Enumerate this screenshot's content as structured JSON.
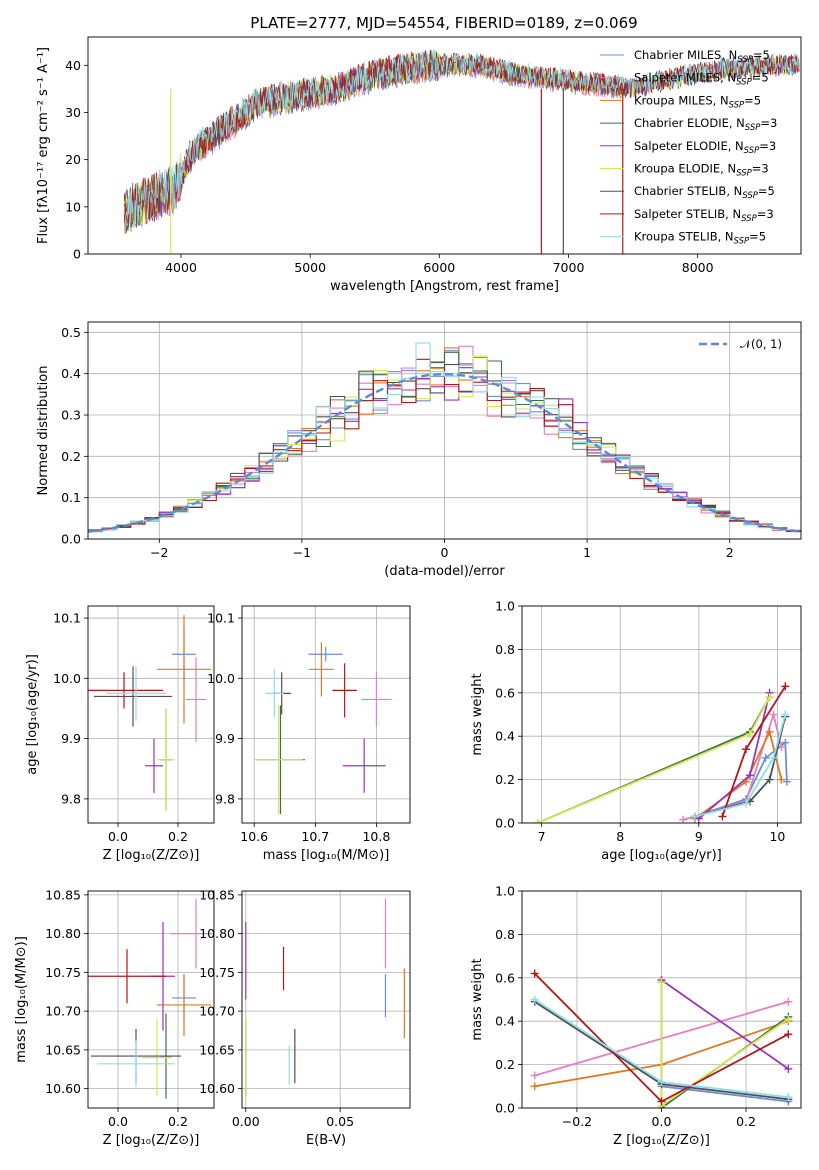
{
  "colors": {
    "Chabrier MILES": "#6a8fd8",
    "Salpeter MILES": "#e57fbf",
    "Kroupa MILES": "#e07a22",
    "Chabrier ELODIE": "#3e6e4a",
    "Salpeter ELODIE": "#9b34b5",
    "Kroupa ELODIE": "#d7e655",
    "Chabrier STELIB": "#505050",
    "Salpeter STELIB": "#b01818",
    "Kroupa STELIB": "#8fdcea",
    "gaussian": "#5b8bd6",
    "grid": "#b0b0b0"
  },
  "chart_data": [
    {
      "type": "line",
      "title": "PLATE=2777, MJD=54554, FIBERID=0189, z=0.069",
      "xlabel": "wavelength [Angstrom, rest frame]",
      "ylabel": "Flux [fλ10⁻¹⁷ erg cm⁻² s⁻¹ A⁻¹]",
      "xlim": [
        3280,
        8800
      ],
      "ylim": [
        0,
        46
      ],
      "xticks": [
        4000,
        5000,
        6000,
        7000,
        8000
      ],
      "yticks": [
        0,
        10,
        20,
        30,
        40
      ],
      "legend_position": "upper-right",
      "legend": [
        {
          "name": "Chabrier MILES",
          "suffix": "=5"
        },
        {
          "name": "Salpeter MILES",
          "suffix": "=5"
        },
        {
          "name": "Kroupa MILES",
          "suffix": "=5"
        },
        {
          "name": "Chabrier ELODIE",
          "suffix": "=3"
        },
        {
          "name": "Salpeter ELODIE",
          "suffix": "=3"
        },
        {
          "name": "Kroupa ELODIE",
          "suffix": "=3"
        },
        {
          "name": "Chabrier STELIB",
          "suffix": "=5"
        },
        {
          "name": "Salpeter STELIB",
          "suffix": "=3"
        },
        {
          "name": "Kroupa STELIB",
          "suffix": "=5"
        }
      ],
      "legend_label_part": ", N",
      "legend_sub": "SSP",
      "spectrum_trend": {
        "x": [
          3560,
          3800,
          3950,
          4100,
          4300,
          4600,
          5000,
          5200,
          5500,
          5900,
          6300,
          6600,
          6900,
          7200,
          7500,
          7800,
          8200,
          8800
        ],
        "y": [
          9,
          12,
          14,
          22,
          26,
          32,
          34,
          35,
          38,
          40,
          40,
          38,
          37,
          36,
          35,
          37,
          39,
          40
        ]
      },
      "spikes": [
        {
          "x": 3920,
          "series": "Kroupa ELODIE"
        },
        {
          "x": 6790,
          "series": "Salpeter STELIB"
        },
        {
          "x": 6960,
          "series": "Chabrier STELIB"
        },
        {
          "x": 7420,
          "series": "Salpeter STELIB"
        }
      ]
    },
    {
      "type": "step",
      "xlabel": "(data-model)/error",
      "ylabel": "Normed distribution",
      "xlim": [
        -2.5,
        2.5
      ],
      "ylim": [
        0,
        0.525
      ],
      "xticks": [
        -2,
        -1,
        0,
        1,
        2
      ],
      "yticks": [
        0.0,
        0.1,
        0.2,
        0.3,
        0.4,
        0.5
      ],
      "legend": "𝒩(0, 1)",
      "legend_position": "upper-right",
      "bin_width": 0.1
    },
    {
      "type": "scatter",
      "xlabel": "Z [log₁₀(Z/Z⊙)]",
      "ylabel": "age  [log₁₀(age/yr)]",
      "xlim": [
        -0.1,
        0.32
      ],
      "ylim": [
        9.76,
        10.12
      ],
      "xticks": [
        0.0,
        0.2
      ],
      "yticks": [
        9.8,
        9.9,
        10.0,
        10.1
      ],
      "points": [
        {
          "s": "Chabrier MILES",
          "x": 0.22,
          "y": 10.04,
          "ex": 0.04,
          "ey": 0.045
        },
        {
          "s": "Salpeter MILES",
          "x": 0.26,
          "y": 9.965,
          "ex": 0.035,
          "ey": 0.07
        },
        {
          "s": "Kroupa MILES",
          "x": 0.22,
          "y": 10.015,
          "ex": 0.09,
          "ey": 0.09
        },
        {
          "s": "Chabrier ELODIE",
          "x": 0.16,
          "y": 9.865,
          "ex": 0.02,
          "ey": 0.085
        },
        {
          "s": "Salpeter ELODIE",
          "x": 0.12,
          "y": 9.855,
          "ex": 0.03,
          "ey": 0.045
        },
        {
          "s": "Kroupa ELODIE",
          "x": 0.16,
          "y": 9.865,
          "ex": 0.03,
          "ey": 0.085
        },
        {
          "s": "Chabrier STELIB",
          "x": 0.05,
          "y": 9.97,
          "ex": 0.13,
          "ey": 0.05
        },
        {
          "s": "Salpeter STELIB",
          "x": 0.02,
          "y": 9.98,
          "ex": 0.13,
          "ey": 0.03
        },
        {
          "s": "Kroupa STELIB",
          "x": 0.06,
          "y": 9.975,
          "ex": 0.1,
          "ey": 0.045
        }
      ]
    },
    {
      "type": "scatter",
      "xlabel": "mass [log₁₀(M/M⊙)]",
      "ylabel": "",
      "xlim": [
        10.58,
        10.855
      ],
      "ylim": [
        9.76,
        10.12
      ],
      "xticks": [
        10.6,
        10.7,
        10.8
      ],
      "yticks": [
        9.8,
        9.9,
        10.0,
        10.1
      ],
      "points": [
        {
          "s": "Chabrier MILES",
          "x": 10.717,
          "y": 10.04,
          "ex": 0.028,
          "ey": 0.012
        },
        {
          "s": "Salpeter MILES",
          "x": 10.8,
          "y": 9.965,
          "ex": 0.025,
          "ey": 0.045
        },
        {
          "s": "Kroupa MILES",
          "x": 10.71,
          "y": 10.015,
          "ex": 0.02,
          "ey": 0.045
        },
        {
          "s": "Chabrier ELODIE",
          "x": 10.643,
          "y": 9.865,
          "ex": 0.04,
          "ey": 0.09
        },
        {
          "s": "Salpeter ELODIE",
          "x": 10.78,
          "y": 9.855,
          "ex": 0.035,
          "ey": 0.045
        },
        {
          "s": "Kroupa ELODIE",
          "x": 10.64,
          "y": 9.865,
          "ex": 0.04,
          "ey": 0.09
        },
        {
          "s": "Chabrier STELIB",
          "x": 10.645,
          "y": 9.975,
          "ex": 0.015,
          "ey": 0.035
        },
        {
          "s": "Salpeter STELIB",
          "x": 10.748,
          "y": 9.98,
          "ex": 0.02,
          "ey": 0.045
        },
        {
          "s": "Kroupa STELIB",
          "x": 10.633,
          "y": 9.975,
          "ex": 0.015,
          "ey": 0.04
        }
      ]
    },
    {
      "type": "line",
      "xlabel": "age  [log₁₀(age/yr)]",
      "ylabel": "mass weight",
      "xlim": [
        6.75,
        10.3
      ],
      "ylim": [
        0,
        1
      ],
      "xticks": [
        7,
        8,
        9,
        10
      ],
      "yticks": [
        0.0,
        0.2,
        0.4,
        0.6,
        0.8,
        1.0
      ],
      "series": [
        {
          "name": "Chabrier MILES",
          "x": [
            8.95,
            9.6,
            9.85,
            10.1,
            10.12
          ],
          "y": [
            0.03,
            0.11,
            0.3,
            0.37,
            0.19
          ]
        },
        {
          "name": "Salpeter MILES",
          "x": [
            8.8,
            9.6,
            9.95,
            10.05
          ],
          "y": [
            0.015,
            0.1,
            0.5,
            0.35
          ]
        },
        {
          "name": "Kroupa MILES",
          "x": [
            8.95,
            9.6,
            9.9,
            10.05
          ],
          "y": [
            0.02,
            0.19,
            0.42,
            0.2
          ]
        },
        {
          "name": "Chabrier ELODIE",
          "x": [
            6.95,
            9.65,
            9.9
          ],
          "y": [
            0.0,
            0.42,
            0.58
          ]
        },
        {
          "name": "Salpeter ELODIE",
          "x": [
            9.0,
            9.65,
            9.9
          ],
          "y": [
            0.02,
            0.22,
            0.6
          ]
        },
        {
          "name": "Kroupa ELODIE",
          "x": [
            6.95,
            9.65,
            9.9
          ],
          "y": [
            0.0,
            0.41,
            0.58
          ]
        },
        {
          "name": "Chabrier STELIB",
          "x": [
            8.95,
            9.65,
            9.9,
            10.1
          ],
          "y": [
            0.03,
            0.1,
            0.2,
            0.49
          ]
        },
        {
          "name": "Salpeter STELIB",
          "x": [
            9.3,
            9.6,
            10.1
          ],
          "y": [
            0.03,
            0.34,
            0.63
          ]
        },
        {
          "name": "Kroupa STELIB",
          "x": [
            8.95,
            9.6,
            9.95,
            10.1
          ],
          "y": [
            0.03,
            0.09,
            0.3,
            0.5
          ]
        }
      ]
    },
    {
      "type": "scatter",
      "xlabel": "Z [log₁₀(Z/Z⊙)]",
      "ylabel": "mass [log₁₀(M/M⊙)]",
      "xlim": [
        -0.1,
        0.32
      ],
      "ylim": [
        10.575,
        10.855
      ],
      "xticks": [
        0.0,
        0.2
      ],
      "yticks": [
        10.6,
        10.65,
        10.7,
        10.75,
        10.8,
        10.85
      ],
      "points": [
        {
          "s": "Chabrier MILES",
          "x": 0.22,
          "y": 10.717,
          "ex": 0.04,
          "ey": 0.028
        },
        {
          "s": "Salpeter MILES",
          "x": 0.26,
          "y": 10.8,
          "ex": 0.085,
          "ey": 0.045
        },
        {
          "s": "Kroupa MILES",
          "x": 0.22,
          "y": 10.708,
          "ex": 0.09,
          "ey": 0.04
        },
        {
          "s": "Chabrier ELODIE",
          "x": 0.16,
          "y": 10.642,
          "ex": 0.02,
          "ey": 0.055
        },
        {
          "s": "Salpeter ELODIE",
          "x": 0.15,
          "y": 10.745,
          "ex": 0.04,
          "ey": 0.07
        },
        {
          "s": "Kroupa ELODIE",
          "x": 0.13,
          "y": 10.64,
          "ex": 0.05,
          "ey": 0.05
        },
        {
          "s": "Chabrier STELIB",
          "x": 0.06,
          "y": 10.642,
          "ex": 0.15,
          "ey": 0.035
        },
        {
          "s": "Salpeter STELIB",
          "x": 0.03,
          "y": 10.745,
          "ex": 0.13,
          "ey": 0.035
        },
        {
          "s": "Kroupa STELIB",
          "x": 0.06,
          "y": 10.632,
          "ex": 0.13,
          "ey": 0.03
        }
      ]
    },
    {
      "type": "scatter",
      "xlabel": "E(B-V)",
      "ylabel": "",
      "xlim": [
        -0.002,
        0.087
      ],
      "ylim": [
        10.575,
        10.855
      ],
      "xticks": [
        0.0,
        0.05
      ],
      "yticks": [
        10.6,
        10.65,
        10.7,
        10.75,
        10.8,
        10.85
      ],
      "points": [
        {
          "s": "Chabrier MILES",
          "x": 0.074,
          "y": 10.72,
          "ex": 0,
          "ey": 0.028
        },
        {
          "s": "Salpeter MILES",
          "x": 0.074,
          "y": 10.8,
          "ex": 0,
          "ey": 0.045
        },
        {
          "s": "Kroupa MILES",
          "x": 0.084,
          "y": 10.71,
          "ex": 0,
          "ey": 0.045
        },
        {
          "s": "Chabrier ELODIE",
          "x": 0.0,
          "y": 10.64,
          "ex": 0,
          "ey": 0.05
        },
        {
          "s": "Salpeter ELODIE",
          "x": 0.0,
          "y": 10.765,
          "ex": 0,
          "ey": 0.05
        },
        {
          "s": "Kroupa ELODIE",
          "x": 0.0,
          "y": 10.64,
          "ex": 0,
          "ey": 0.055
        },
        {
          "s": "Chabrier STELIB",
          "x": 0.026,
          "y": 10.642,
          "ex": 0,
          "ey": 0.035
        },
        {
          "s": "Salpeter STELIB",
          "x": 0.02,
          "y": 10.755,
          "ex": 0,
          "ey": 0.028
        },
        {
          "s": "Kroupa STELIB",
          "x": 0.023,
          "y": 10.63,
          "ex": 0,
          "ey": 0.025
        }
      ]
    },
    {
      "type": "line",
      "xlabel": "Z [log₁₀(Z/Z⊙)]",
      "ylabel": "mass weight",
      "xlim": [
        -0.33,
        0.33
      ],
      "ylim": [
        0,
        1
      ],
      "xticks": [
        -0.2,
        0.0,
        0.2
      ],
      "yticks": [
        0.0,
        0.2,
        0.4,
        0.6,
        0.8,
        1.0
      ],
      "series": [
        {
          "name": "Chabrier MILES",
          "x": [
            0.0,
            0.3
          ],
          "y": [
            0.1,
            0.03
          ]
        },
        {
          "name": "Salpeter MILES",
          "x": [
            -0.3,
            0.3
          ],
          "y": [
            0.15,
            0.49
          ]
        },
        {
          "name": "Kroupa MILES",
          "x": [
            -0.3,
            0.0,
            0.3
          ],
          "y": [
            0.1,
            0.2,
            0.4
          ]
        },
        {
          "name": "Chabrier ELODIE",
          "x": [
            0.0,
            0.0,
            0.3
          ],
          "y": [
            0.58,
            0.0,
            0.42
          ]
        },
        {
          "name": "Salpeter ELODIE",
          "x": [
            0.0,
            0.3
          ],
          "y": [
            0.59,
            0.18
          ]
        },
        {
          "name": "Kroupa ELODIE",
          "x": [
            0.0,
            0.0,
            0.3
          ],
          "y": [
            0.58,
            0.01,
            0.41
          ]
        },
        {
          "name": "Chabrier STELIB",
          "x": [
            -0.3,
            0.0,
            0.3
          ],
          "y": [
            0.49,
            0.11,
            0.04
          ]
        },
        {
          "name": "Salpeter STELIB",
          "x": [
            -0.3,
            0.0,
            0.3
          ],
          "y": [
            0.62,
            0.03,
            0.34
          ]
        },
        {
          "name": "Kroupa STELIB",
          "x": [
            -0.3,
            0.0,
            0.3
          ],
          "y": [
            0.5,
            0.12,
            0.05
          ]
        }
      ]
    }
  ]
}
